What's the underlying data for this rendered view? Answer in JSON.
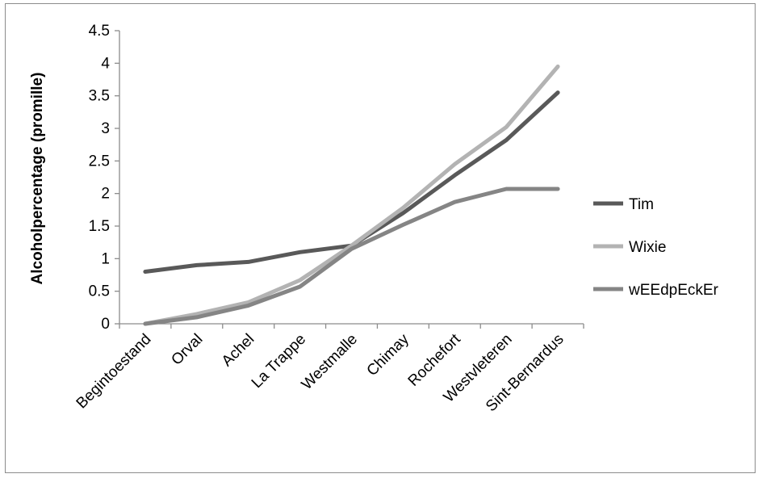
{
  "chart_data": {
    "type": "line",
    "title": "",
    "xlabel": "",
    "ylabel": "Alcoholpercentage (promille)",
    "categories": [
      "Begintoestand",
      "Orval",
      "Achel",
      "La Trappe",
      "Westmalle",
      "Chimay",
      "Rochefort",
      "Westvleteren",
      "Sint-Bernardus"
    ],
    "ylim": [
      0,
      4.5
    ],
    "yticks": [
      0,
      0.5,
      1,
      1.5,
      2,
      2.5,
      3,
      3.5,
      4,
      4.5
    ],
    "yticklabels": [
      "0",
      "0.5",
      "1",
      "1.5",
      "2",
      "2.5",
      "3",
      "3.5",
      "4",
      "4.5"
    ],
    "grid": false,
    "legend_position": "right",
    "series": [
      {
        "name": "Tim",
        "color": "#595959",
        "values": [
          0.8,
          0.9,
          0.95,
          1.1,
          1.2,
          1.7,
          2.28,
          2.82,
          3.55
        ]
      },
      {
        "name": "Wixie",
        "color": "#b3b3b3",
        "values": [
          0,
          0.15,
          0.33,
          0.67,
          1.2,
          1.78,
          2.45,
          3.02,
          3.95
        ]
      },
      {
        "name": "wEEdpEckEr",
        "color": "#858585",
        "values": [
          0,
          0.1,
          0.28,
          0.57,
          1.15,
          1.52,
          1.87,
          2.07,
          2.07
        ]
      }
    ]
  }
}
